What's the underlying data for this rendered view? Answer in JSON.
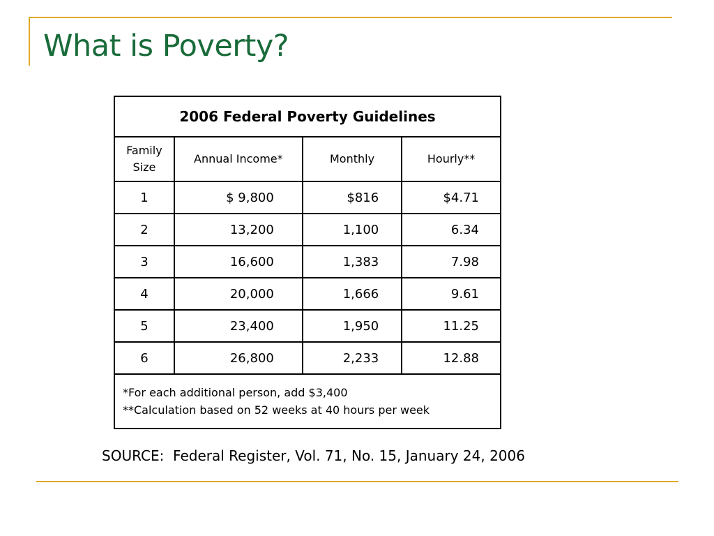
{
  "slide": {
    "title": "What is Poverty?",
    "colors": {
      "title": "#196b3a",
      "accent_rule": "#e0a92a"
    }
  },
  "table": {
    "caption": "2006 Federal Poverty Guidelines",
    "headers": {
      "family_size_line1": "Family",
      "family_size_line2": "Size",
      "annual": "Annual Income*",
      "monthly": "Monthly",
      "hourly": "Hourly**"
    },
    "rows": [
      {
        "size": "1",
        "annual": "$ 9,800",
        "monthly": "$816",
        "hourly": "$4.71"
      },
      {
        "size": "2",
        "annual": "13,200",
        "monthly": "1,100",
        "hourly": "6.34"
      },
      {
        "size": "3",
        "annual": "16,600",
        "monthly": "1,383",
        "hourly": "7.98"
      },
      {
        "size": "4",
        "annual": "20,000",
        "monthly": "1,666",
        "hourly": "9.61"
      },
      {
        "size": "5",
        "annual": "23,400",
        "monthly": "1,950",
        "hourly": "11.25"
      },
      {
        "size": "6",
        "annual": "26,800",
        "monthly": "2,233",
        "hourly": "12.88"
      }
    ],
    "footnotes": [
      "*For each additional person, add $3,400",
      "**Calculation based on 52 weeks at 40 hours per week"
    ]
  },
  "source": "SOURCE:  Federal Register, Vol. 71, No. 15, January 24, 2006"
}
